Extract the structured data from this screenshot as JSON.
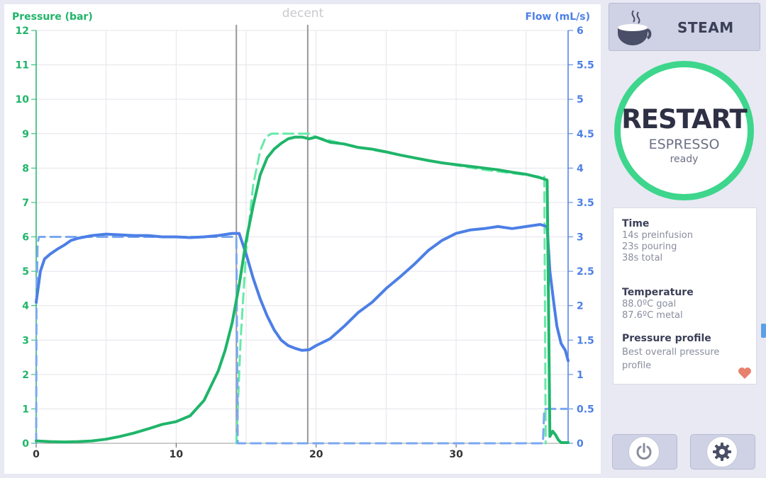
{
  "brand": "decent",
  "colors": {
    "pressure": "#1fb569",
    "pressure_goal": "#66eaa8",
    "flow": "#4c7fe6",
    "flow_goal": "#7aa8f0",
    "accent_green": "#3dd68c",
    "grid": "#e4e4ec",
    "marker": "#999999"
  },
  "chart_data": {
    "type": "line",
    "xlim": [
      0,
      38
    ],
    "x_ticks": [
      0,
      10,
      20,
      30
    ],
    "y_left": {
      "label": "Pressure (bar)",
      "range": [
        0,
        12
      ],
      "ticks": [
        "0",
        "1",
        "2",
        "3",
        "4",
        "5",
        "6",
        "7",
        "8",
        "9",
        "10",
        "11",
        "12"
      ]
    },
    "y_right": {
      "label": "Flow (mL/s)",
      "range": [
        0,
        6
      ],
      "ticks": [
        "0",
        "0.5",
        "1",
        "1.5",
        "2",
        "2.5",
        "3",
        "3.5",
        "4",
        "4.5",
        "5",
        "5.5",
        "6"
      ]
    },
    "markers_x": [
      14.3,
      19.4
    ],
    "series": [
      {
        "axis": "left",
        "style": "solid",
        "color": "#1fb569",
        "x": [
          0,
          1,
          2,
          3,
          4,
          5,
          6,
          7,
          8,
          9,
          10,
          11,
          12,
          13,
          13.5,
          14,
          14.5,
          15,
          15.5,
          16,
          16.5,
          17,
          17.5,
          18,
          18.5,
          19,
          19.5,
          20,
          21,
          22,
          23,
          24,
          25,
          26,
          27,
          28,
          29,
          30,
          31,
          32,
          33,
          34,
          35,
          36,
          36.5,
          36.6,
          36.7,
          36.9,
          37.1,
          37.3,
          37.5,
          37.8,
          38
        ],
        "y": [
          0.07,
          0.05,
          0.04,
          0.05,
          0.07,
          0.12,
          0.2,
          0.3,
          0.42,
          0.55,
          0.63,
          0.8,
          1.25,
          2.1,
          2.7,
          3.5,
          4.6,
          5.9,
          6.9,
          7.8,
          8.3,
          8.55,
          8.72,
          8.85,
          8.9,
          8.9,
          8.85,
          8.9,
          8.75,
          8.7,
          8.6,
          8.55,
          8.47,
          8.38,
          8.3,
          8.22,
          8.15,
          8.1,
          8.05,
          8.0,
          7.95,
          7.88,
          7.82,
          7.72,
          7.65,
          4.0,
          0.2,
          0.35,
          0.25,
          0.1,
          0.02,
          0.02,
          0.02
        ]
      },
      {
        "axis": "left",
        "style": "dashed",
        "color": "#66eaa8",
        "x": [
          14.3,
          14.6,
          15,
          15.5,
          16,
          16.4,
          16.8,
          17.5,
          18.5,
          19.5,
          20,
          22,
          24,
          26,
          28,
          30,
          32,
          34,
          35,
          36,
          36.3,
          36.4
        ],
        "y": [
          0,
          3.0,
          5.6,
          7.5,
          8.5,
          8.9,
          9.0,
          9.0,
          9.0,
          9.0,
          8.9,
          8.7,
          8.53,
          8.38,
          8.23,
          8.08,
          7.95,
          7.85,
          7.8,
          7.75,
          7.75,
          0
        ]
      },
      {
        "axis": "right",
        "style": "solid",
        "color": "#4c7fe6",
        "x": [
          0,
          0.1,
          0.3,
          0.6,
          1,
          1.5,
          2,
          2.5,
          3,
          4,
          5,
          6,
          7,
          8,
          9,
          10,
          11,
          12,
          13,
          14,
          14.5,
          15,
          15.5,
          16,
          16.5,
          17,
          17.5,
          18,
          18.5,
          19,
          19.5,
          20,
          20.5,
          21,
          22,
          23,
          24,
          25,
          26,
          27,
          28,
          29,
          30,
          31,
          32,
          33,
          34,
          35,
          36,
          36.5,
          36.7,
          37,
          37.2,
          37.5,
          37.8,
          38
        ],
        "y": [
          2.05,
          2.2,
          2.5,
          2.68,
          2.75,
          2.82,
          2.88,
          2.95,
          2.98,
          3.02,
          3.04,
          3.03,
          3.02,
          3.02,
          3.0,
          3.0,
          2.99,
          3.0,
          3.02,
          3.05,
          3.05,
          2.75,
          2.4,
          2.1,
          1.85,
          1.65,
          1.5,
          1.42,
          1.38,
          1.35,
          1.36,
          1.42,
          1.47,
          1.52,
          1.7,
          1.9,
          2.05,
          2.25,
          2.42,
          2.6,
          2.8,
          2.95,
          3.05,
          3.1,
          3.12,
          3.15,
          3.12,
          3.15,
          3.18,
          3.15,
          2.5,
          2.0,
          1.7,
          1.45,
          1.35,
          1.2
        ]
      },
      {
        "axis": "right",
        "style": "dashed",
        "color": "#7aa8f0",
        "x": [
          0,
          0.02,
          0.1,
          0.2,
          14.3,
          14.35,
          14.4,
          36.2,
          36.3,
          36.4,
          36.5,
          38
        ],
        "y": [
          0,
          2.0,
          2.9,
          3.0,
          3.0,
          1.5,
          0,
          0,
          0.5,
          0.5,
          0.5,
          0.5
        ]
      }
    ]
  },
  "steam_label": "STEAM",
  "restart": {
    "title": "RESTART",
    "subtitle": "ESPRESSO",
    "status": "ready"
  },
  "info": {
    "time_heading": "Time",
    "preinfusion": "14s preinfusion",
    "pouring": "23s pouring",
    "total": "38s total",
    "temp_heading": "Temperature",
    "goal": "88.0ºC goal",
    "metal": "87.6ºC metal",
    "profile_heading": "Pressure profile",
    "profile_line1": "Best overall pressure",
    "profile_line2": "profile"
  }
}
